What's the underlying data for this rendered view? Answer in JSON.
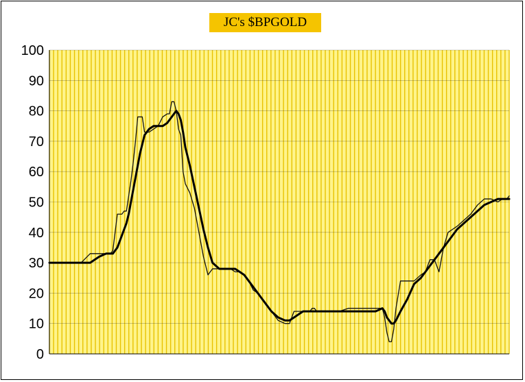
{
  "chart_data": {
    "type": "line",
    "title": "JC's $BPGOLD",
    "xlabel": "",
    "ylabel": "",
    "ylim": [
      0,
      100
    ],
    "yticks": [
      0,
      10,
      20,
      30,
      40,
      50,
      60,
      70,
      80,
      90,
      100
    ],
    "x": [
      0,
      3,
      6,
      10,
      14,
      18,
      20,
      22,
      25,
      27,
      28,
      29,
      30,
      31,
      32,
      33,
      34,
      35,
      36,
      37,
      38,
      39,
      40,
      41,
      42,
      44,
      46,
      48,
      50,
      52,
      53,
      54,
      55,
      56,
      57,
      58,
      59,
      60,
      62,
      64,
      66,
      68,
      70,
      72,
      75,
      78,
      80,
      82,
      84,
      86,
      88,
      90,
      92,
      95,
      98,
      101,
      104,
      106,
      108,
      110,
      112,
      114,
      115,
      116,
      117,
      118,
      119,
      120,
      122,
      125,
      128,
      132,
      136,
      140,
      144,
      147,
      148,
      149,
      150,
      151,
      152,
      153,
      155,
      158,
      161,
      164,
      166,
      168,
      170,
      172,
      174,
      176,
      178,
      180,
      183,
      186,
      189,
      192,
      195,
      198,
      200,
      202,
      203
    ],
    "series": [
      {
        "values": [
          30,
          30,
          30,
          30,
          30,
          33,
          33,
          33,
          33,
          33,
          34,
          40,
          46,
          46,
          46,
          47,
          47,
          52,
          57,
          63,
          70,
          78,
          78,
          78,
          73,
          73,
          74,
          75,
          78,
          79,
          79,
          83,
          83,
          80,
          74,
          72,
          60,
          56,
          53,
          48,
          40,
          32,
          26,
          28,
          28,
          28,
          28,
          27,
          27,
          26,
          24,
          21,
          20,
          17,
          14,
          11,
          10,
          10,
          14,
          14,
          14,
          14,
          14,
          15,
          15,
          14,
          14,
          14,
          14,
          14,
          14,
          15,
          15,
          15,
          15,
          15,
          12,
          7,
          4,
          4,
          8,
          15,
          24,
          24,
          24,
          26,
          27,
          31,
          31,
          27,
          35,
          40,
          41,
          42,
          44,
          46,
          49,
          51,
          51,
          50,
          51,
          51,
          52
        ]
      },
      {
        "values": [
          30,
          30,
          30,
          30,
          30,
          30,
          31,
          32,
          33,
          33,
          33,
          34,
          35,
          37,
          39,
          41,
          43,
          46,
          50,
          54,
          58,
          62,
          66,
          69,
          72,
          74,
          75,
          75,
          75,
          76,
          77,
          78,
          79,
          80,
          79,
          77,
          73,
          68,
          62,
          55,
          48,
          41,
          35,
          30,
          28,
          28,
          28,
          28,
          27,
          26,
          24,
          22,
          20,
          17,
          14,
          12,
          11,
          11,
          12,
          13,
          14,
          14,
          14,
          14,
          14,
          14,
          14,
          14,
          14,
          14,
          14,
          14,
          14,
          14,
          14,
          15,
          14,
          12,
          11,
          10,
          10,
          11,
          14,
          18,
          23,
          25,
          27,
          29,
          31,
          33,
          35,
          37,
          39,
          41,
          43,
          45,
          47,
          49,
          50,
          51,
          51,
          51,
          51
        ]
      }
    ]
  }
}
